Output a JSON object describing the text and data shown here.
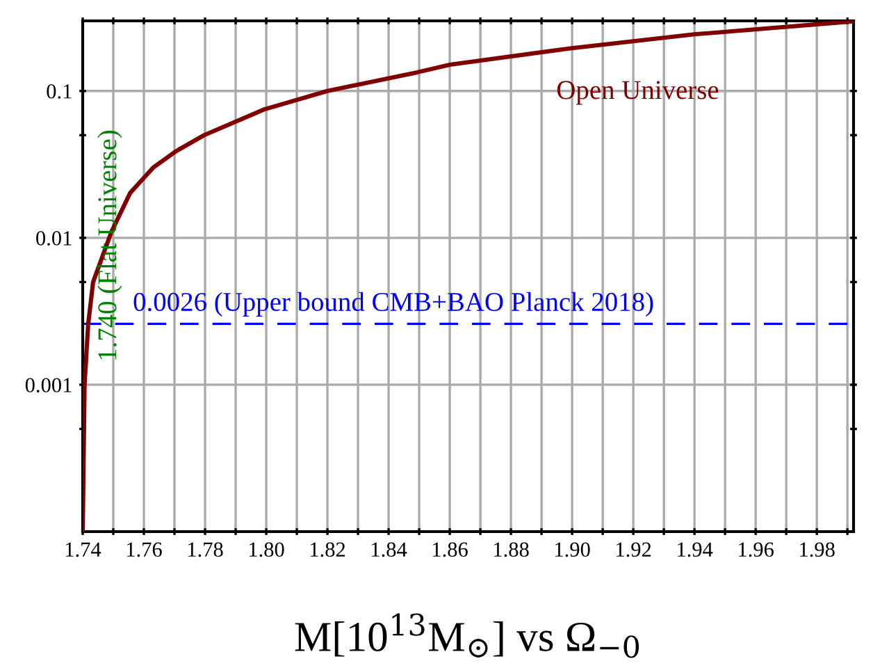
{
  "chart_data": {
    "type": "line",
    "xlabel": "M[10$^{13}$M$_{⊙}$] vs Ω$_{−0}$",
    "x": [
      1.74,
      1.7406,
      1.7418,
      1.7434,
      1.7494,
      1.7555,
      1.763,
      1.7706,
      1.7797,
      1.7994,
      1.82,
      1.8494,
      1.86,
      1.8994,
      1.94,
      1.992
    ],
    "series": [
      {
        "color": "#800000",
        "values": [
          0.0001,
          0.001,
          0.0026,
          0.005,
          0.011,
          0.0202,
          0.03,
          0.039,
          0.05,
          0.075,
          0.1,
          0.134,
          0.151,
          0.195,
          0.243,
          0.298
        ]
      }
    ],
    "log": "y",
    "xlim": [
      1.74,
      1.992
    ],
    "ylim": [
      0.0001,
      0.3
    ],
    "xticks": [
      {
        "value": 1.74,
        "label": "1.74"
      },
      {
        "value": 1.75,
        "label": null
      },
      {
        "value": 1.76,
        "label": "1.76"
      },
      {
        "value": 1.77,
        "label": null
      },
      {
        "value": 1.78,
        "label": "1.78"
      },
      {
        "value": 1.79,
        "label": null
      },
      {
        "value": 1.8,
        "label": "1.80"
      },
      {
        "value": 1.81,
        "label": null
      },
      {
        "value": 1.82,
        "label": "1.82"
      },
      {
        "value": 1.83,
        "label": null
      },
      {
        "value": 1.84,
        "label": "1.84"
      },
      {
        "value": 1.85,
        "label": null
      },
      {
        "value": 1.86,
        "label": "1.86"
      },
      {
        "value": 1.87,
        "label": null
      },
      {
        "value": 1.88,
        "label": "1.88"
      },
      {
        "value": 1.89,
        "label": null
      },
      {
        "value": 1.9,
        "label": "1.90"
      },
      {
        "value": 1.91,
        "label": null
      },
      {
        "value": 1.92,
        "label": "1.92"
      },
      {
        "value": 1.93,
        "label": null
      },
      {
        "value": 1.94,
        "label": "1.94"
      },
      {
        "value": 1.95,
        "label": null
      },
      {
        "value": 1.96,
        "label": "1.96"
      },
      {
        "value": 1.97,
        "label": null
      },
      {
        "value": 1.98,
        "label": "1.98"
      },
      {
        "value": 1.99,
        "label": null
      }
    ],
    "yticks": [
      {
        "value": 0.0005,
        "label": null
      },
      0.001,
      {
        "value": 0.005,
        "label": null
      },
      0.01,
      {
        "value": 0.05,
        "label": null
      },
      0.1
    ],
    "grid": true,
    "marker": "none",
    "line_style": "solid",
    "ref_lines": [
      {
        "axis": "y",
        "value": 0.0026,
        "label": "0.0026 (Upper bound CMB+BAO Planck 2018)",
        "color": "#0000ff",
        "line_style": "dashed"
      }
    ],
    "annotations": [
      "1.740 (Flat Universe)",
      "Open Universe"
    ]
  }
}
